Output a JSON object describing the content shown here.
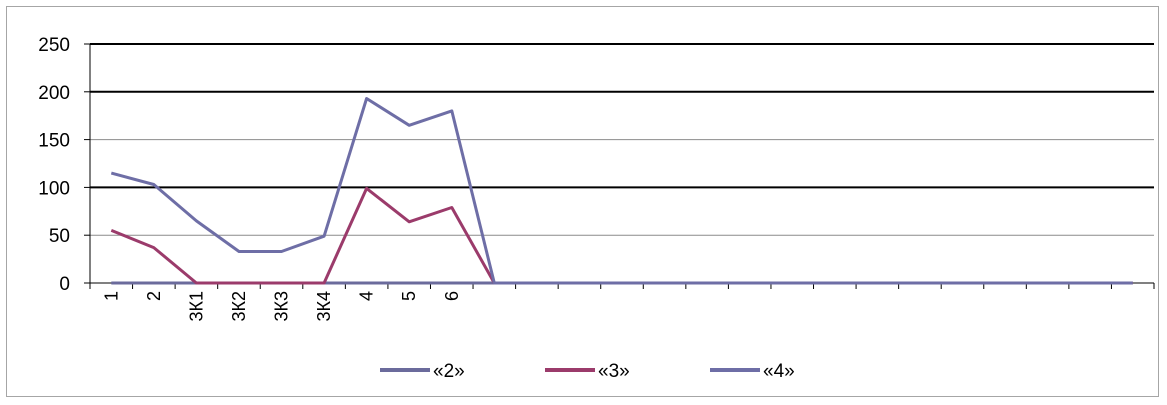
{
  "chart_data": {
    "type": "line",
    "title": "",
    "xlabel": "",
    "ylabel": "",
    "categories": [
      "1",
      "2",
      "3К1",
      "3К2",
      "3К3",
      "3К4",
      "4",
      "5",
      "6",
      "",
      "",
      "",
      "",
      "",
      "",
      "",
      "",
      "",
      "",
      "",
      "",
      "",
      "",
      "",
      ""
    ],
    "ylim": [
      0,
      250
    ],
    "yticks": [
      0,
      50,
      100,
      150,
      200,
      250
    ],
    "grid": true,
    "legend_position": "bottom",
    "series": [
      {
        "name": "«2»",
        "color": "#6b6b9c",
        "values": [
          0,
          0,
          0,
          0,
          0,
          0,
          0,
          0,
          0,
          0,
          0,
          0,
          0,
          0,
          0,
          0,
          0,
          0,
          0,
          0,
          0,
          0,
          0,
          0,
          0
        ]
      },
      {
        "name": "«3»",
        "color": "#9b3b6b",
        "values": [
          55,
          37,
          0,
          0,
          0,
          0,
          99,
          64,
          79,
          0,
          0,
          0,
          0,
          0,
          0,
          0,
          0,
          0,
          0,
          0,
          0,
          0,
          0,
          0,
          0
        ]
      },
      {
        "name": "«4»",
        "color": "#6e6ea6",
        "values": [
          115,
          103,
          65,
          33,
          33,
          49,
          193,
          165,
          180,
          0,
          0,
          0,
          0,
          0,
          0,
          0,
          0,
          0,
          0,
          0,
          0,
          0,
          0,
          0,
          0
        ]
      }
    ]
  }
}
